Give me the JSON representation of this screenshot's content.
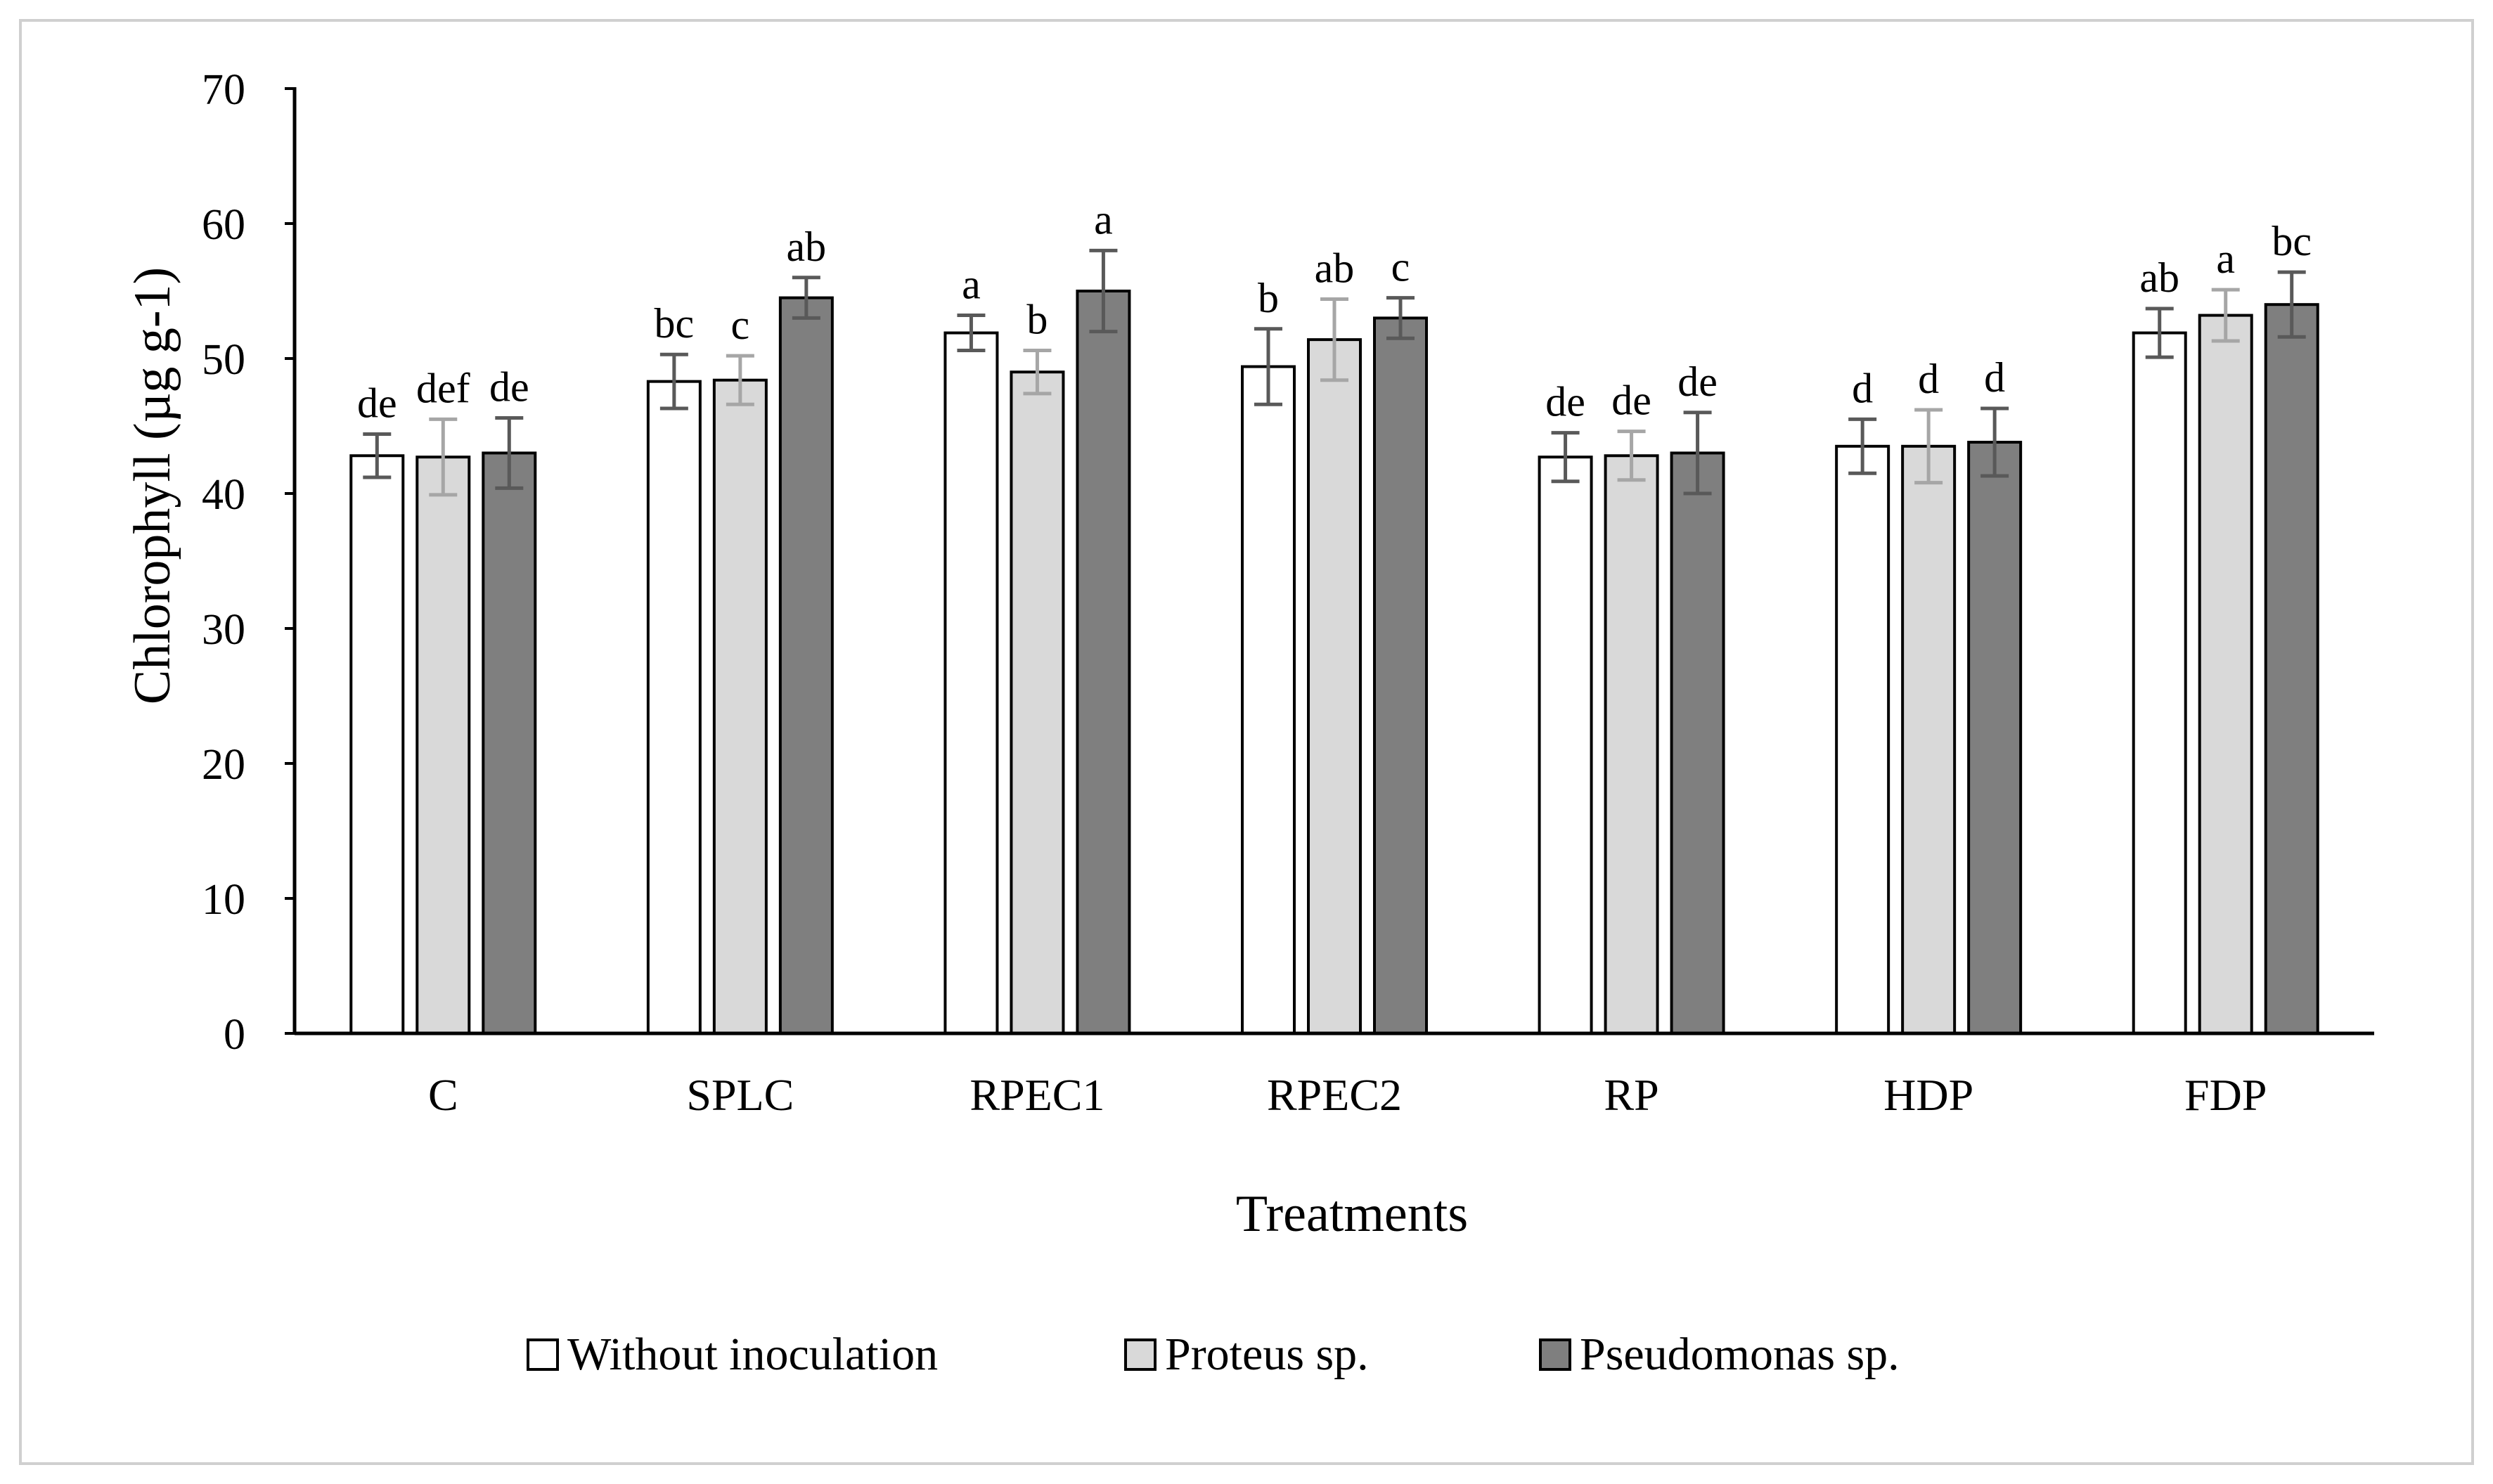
{
  "chart_data": {
    "type": "bar",
    "xlabel": "Treatments",
    "ylabel": "Chlorophyll (µg g-1)",
    "ylim": [
      0,
      70
    ],
    "yticks": [
      0,
      10,
      20,
      30,
      40,
      50,
      60,
      70
    ],
    "grid": false,
    "legend_position": "bottom",
    "categories": [
      "C",
      "SPLC",
      "RPEC1",
      "RPEC2",
      "RP",
      "HDP",
      "FDP"
    ],
    "series": [
      {
        "name": "Without inoculation",
        "color": "#ffffff",
        "values": [
          42.8,
          48.3,
          51.9,
          49.4,
          42.7,
          43.5,
          51.9
        ],
        "errors": [
          1.6,
          2.0,
          1.3,
          2.8,
          1.8,
          2.0,
          1.8
        ],
        "letters": [
          "de",
          "bc",
          "a",
          "b",
          "de",
          "d",
          "ab"
        ]
      },
      {
        "name": "Proteus sp.",
        "color": "#d9d9d9",
        "values": [
          42.7,
          48.4,
          49.0,
          51.4,
          42.8,
          43.5,
          53.2
        ],
        "errors": [
          2.8,
          1.8,
          1.6,
          3.0,
          1.8,
          2.7,
          1.9
        ],
        "letters": [
          "def",
          "c",
          "b",
          "ab",
          "de",
          "d",
          "a"
        ]
      },
      {
        "name": "Pseudomonas sp.",
        "color": "#7f7f7f",
        "values": [
          43.0,
          54.5,
          55.0,
          53.0,
          43.0,
          43.8,
          54.0
        ],
        "errors": [
          2.6,
          1.5,
          3.0,
          1.5,
          3.0,
          2.5,
          2.4
        ],
        "letters": [
          "de",
          "ab",
          "a",
          "c",
          "de",
          "d",
          "bc"
        ]
      }
    ]
  }
}
